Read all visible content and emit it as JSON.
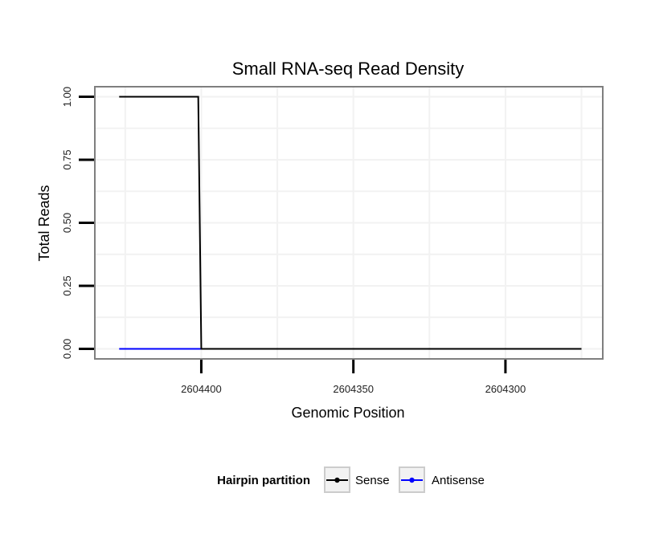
{
  "chart_data": {
    "type": "line",
    "title": "Small RNA-seq Read Density",
    "xlabel": "Genomic Position",
    "ylabel": "Total Reads",
    "x_reversed": true,
    "xlim": [
      2604435,
      2604268
    ],
    "ylim": [
      -0.04,
      1.04
    ],
    "x_ticks": [
      2604400,
      2604350,
      2604300
    ],
    "x_tick_labels": [
      "2604400",
      "2604350",
      "2604300"
    ],
    "y_ticks": [
      0,
      0.25,
      0.5,
      0.75,
      1.0
    ],
    "y_tick_labels": [
      "0.00",
      "0.25",
      "0.50",
      "0.75",
      "1.00"
    ],
    "x_minor_grid": [
      2604425,
      2604375,
      2604325,
      2604275
    ],
    "grid": true,
    "legend": {
      "title": "Hairpin partition",
      "position": "bottom",
      "entries": [
        "Sense",
        "Antisense"
      ]
    },
    "series": [
      {
        "name": "Sense",
        "color": "#000000",
        "x": [
          2604427,
          2604401,
          2604400,
          2604275
        ],
        "y": [
          1.0,
          1.0,
          0.0,
          0.0
        ]
      },
      {
        "name": "Antisense",
        "color": "#0000ff",
        "x": [
          2604427,
          2604400
        ],
        "y": [
          0.0,
          0.0
        ]
      }
    ]
  }
}
